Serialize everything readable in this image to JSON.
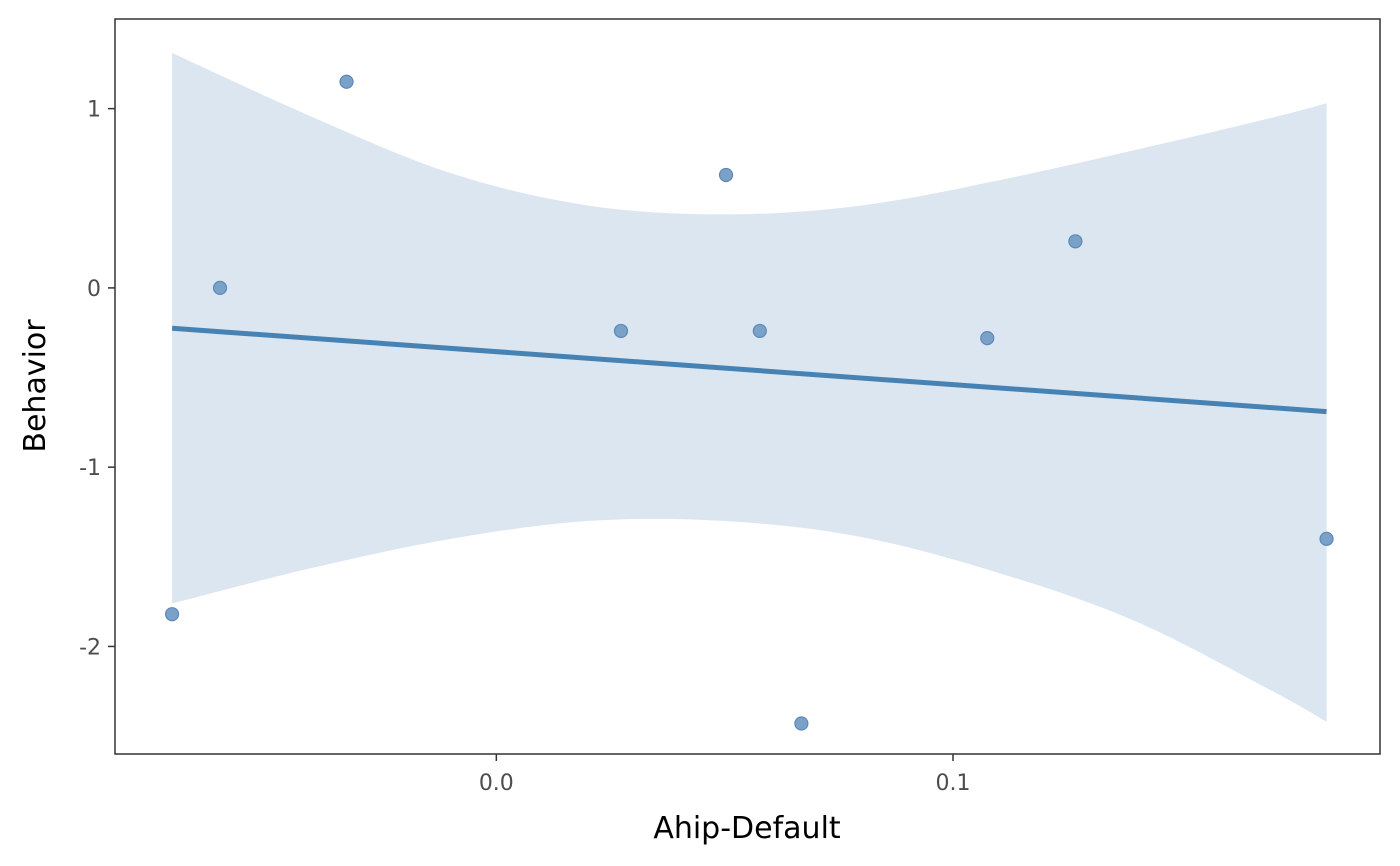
{
  "chart_data": {
    "type": "scatter",
    "xlabel": "Ahip-Default",
    "ylabel": "Behavior",
    "xlim": [
      -0.0835,
      0.1935
    ],
    "ylim": [
      -2.6,
      1.5
    ],
    "x_ticks": [
      {
        "value": 0.0,
        "label": "0.0"
      },
      {
        "value": 0.1,
        "label": "0.1"
      }
    ],
    "y_ticks": [
      {
        "value": 1,
        "label": "1"
      },
      {
        "value": 0,
        "label": "0"
      },
      {
        "value": -1,
        "label": "-1"
      },
      {
        "value": -2,
        "label": "-2"
      }
    ],
    "points": [
      {
        "x": -0.071,
        "y": -1.82
      },
      {
        "x": -0.0605,
        "y": 0.0
      },
      {
        "x": -0.0328,
        "y": 1.15
      },
      {
        "x": 0.0273,
        "y": -0.24
      },
      {
        "x": 0.0503,
        "y": 0.63
      },
      {
        "x": 0.0577,
        "y": -0.24
      },
      {
        "x": 0.0668,
        "y": -2.43
      },
      {
        "x": 0.1075,
        "y": -0.28
      },
      {
        "x": 0.1268,
        "y": 0.26
      },
      {
        "x": 0.1818,
        "y": -1.4
      }
    ],
    "fit_line": {
      "x": [
        -0.071,
        0.1818
      ],
      "y": [
        -0.225,
        -0.69
      ]
    },
    "confidence_band": {
      "x": [
        -0.071,
        -0.04,
        -0.01,
        0.02,
        0.05,
        0.08,
        0.11,
        0.14,
        0.17,
        0.1818
      ],
      "upper": [
        1.31,
        0.95,
        0.64,
        0.46,
        0.41,
        0.46,
        0.6,
        0.77,
        0.95,
        1.03
      ],
      "lower": [
        -1.76,
        -1.56,
        -1.4,
        -1.3,
        -1.3,
        -1.39,
        -1.59,
        -1.86,
        -2.25,
        -2.42
      ]
    },
    "grid": false,
    "legend": "none",
    "colors": {
      "point": "#7aa2c9",
      "point_stroke": "#5d88b6",
      "line": "#4682b4",
      "band": "#dbe6f0",
      "frame": "#333333",
      "tick_text": "#4d4d4d",
      "axis_title": "#000000"
    }
  }
}
